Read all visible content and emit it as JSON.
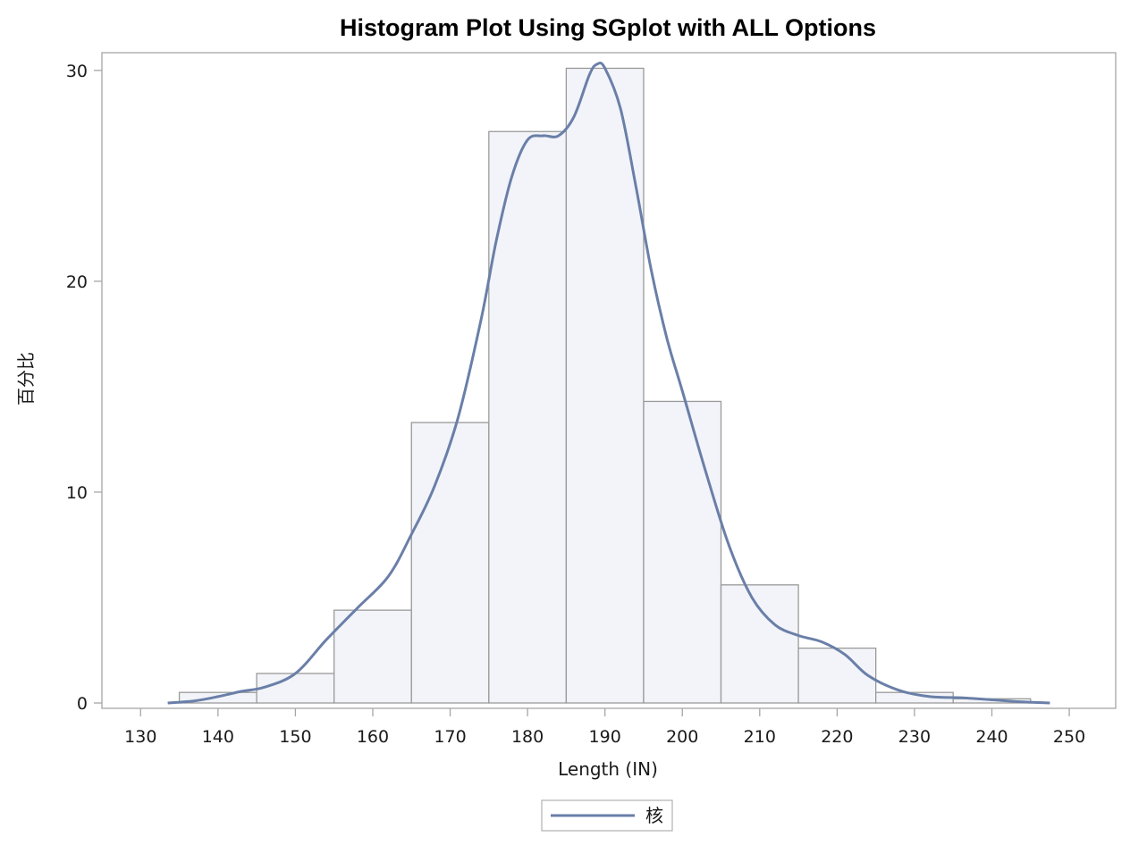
{
  "chart_data": {
    "type": "bar",
    "title": "Histogram Plot Using SGplot with ALL Options",
    "xlabel": "Length (IN)",
    "ylabel": "百分比",
    "xlim": [
      125,
      256
    ],
    "ylim": [
      0,
      30.5
    ],
    "xticks": [
      130,
      140,
      150,
      160,
      170,
      180,
      190,
      200,
      210,
      220,
      230,
      240,
      250
    ],
    "yticks": [
      0,
      10,
      20,
      30
    ],
    "bins": [
      {
        "start": 135,
        "end": 145,
        "value": 0.5
      },
      {
        "start": 145,
        "end": 155,
        "value": 1.4
      },
      {
        "start": 155,
        "end": 165,
        "value": 4.4
      },
      {
        "start": 165,
        "end": 175,
        "value": 13.3
      },
      {
        "start": 175,
        "end": 185,
        "value": 27.1
      },
      {
        "start": 185,
        "end": 195,
        "value": 30.1
      },
      {
        "start": 195,
        "end": 205,
        "value": 14.3
      },
      {
        "start": 205,
        "end": 215,
        "value": 5.6
      },
      {
        "start": 215,
        "end": 225,
        "value": 2.6
      },
      {
        "start": 225,
        "end": 235,
        "value": 0.5
      },
      {
        "start": 235,
        "end": 245,
        "value": 0.2
      }
    ],
    "series": [
      {
        "name": "核",
        "type": "line",
        "x": [
          133.5,
          137,
          140,
          143,
          146,
          150,
          154,
          158,
          162,
          165,
          168,
          171,
          174,
          176,
          178,
          180,
          182,
          184,
          186,
          188,
          189,
          190,
          192,
          194,
          196,
          198,
          200,
          203,
          206,
          209,
          212,
          215,
          218,
          221,
          224,
          228,
          232,
          236,
          240,
          244,
          247.5
        ],
        "y": [
          0.0,
          0.1,
          0.3,
          0.55,
          0.75,
          1.4,
          3.0,
          4.5,
          6.0,
          8.0,
          10.3,
          13.5,
          18.2,
          22.0,
          25.0,
          26.7,
          26.9,
          26.9,
          27.8,
          29.8,
          30.3,
          30.1,
          28.2,
          24.5,
          20.5,
          17.3,
          14.8,
          11.0,
          7.5,
          5.0,
          3.7,
          3.2,
          2.9,
          2.3,
          1.3,
          0.6,
          0.3,
          0.25,
          0.15,
          0.05,
          0.0
        ]
      }
    ],
    "colors": {
      "bar_fill": "#f2f4f9",
      "bar_stroke": "#9a9a9a",
      "line": "#6a7fa8",
      "frame": "#a6a6a6"
    },
    "legend": {
      "position": "bottom-center",
      "entries": [
        "核"
      ]
    },
    "grid": false
  }
}
